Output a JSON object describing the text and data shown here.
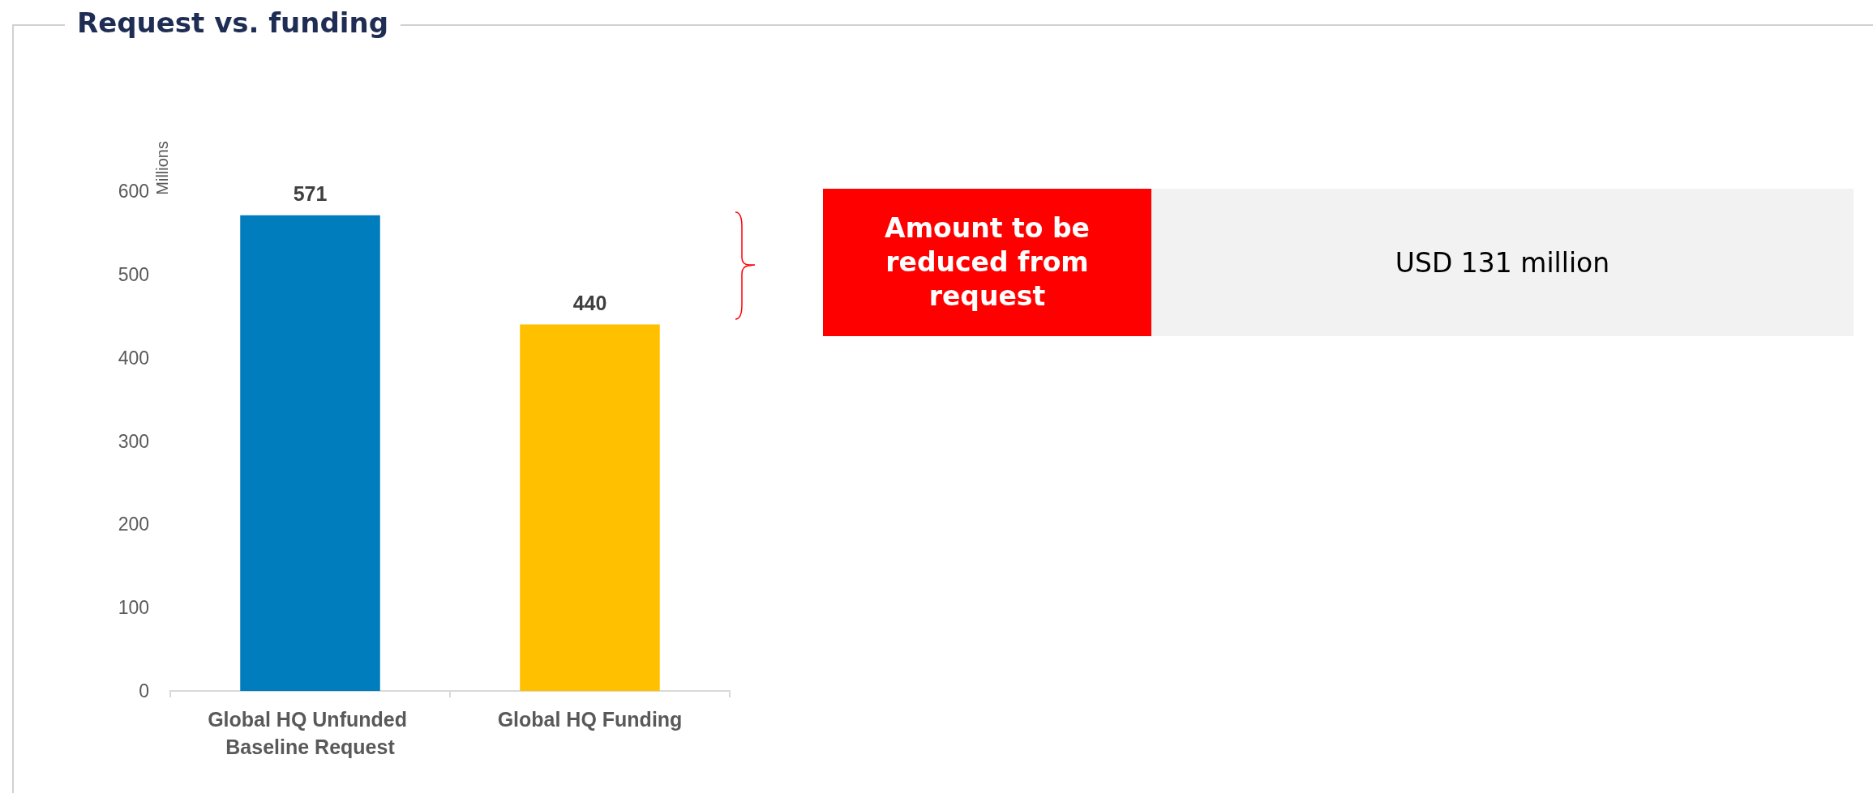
{
  "chart_data": {
    "type": "bar",
    "title": "Request vs. funding",
    "ylabel": "Millions",
    "categories": [
      "Global HQ Unfunded Baseline Request",
      "Global HQ Funding"
    ],
    "values": [
      571,
      440
    ],
    "colors": [
      "#007dbd",
      "#ffc000"
    ],
    "ylim": [
      0,
      600
    ],
    "yticks": [
      0,
      100,
      200,
      300,
      400,
      500,
      600
    ],
    "grid": false,
    "data_labels": true,
    "annotations": [
      "Amount to be reduced from request",
      "USD 131 million"
    ]
  }
}
